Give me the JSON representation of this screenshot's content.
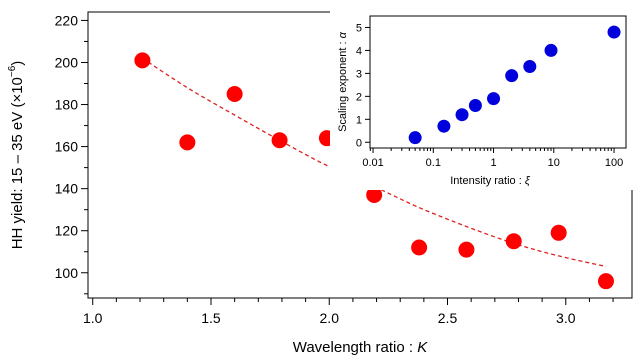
{
  "chart_data": [
    {
      "type": "scatter",
      "xlabel": "Wavelength ratio : ",
      "xlabel_symbol": "K",
      "ylabel": "HH yield: 15 – 35 eV (×10",
      "ylabel_exp": "−6",
      "ylabel_end": ")",
      "xlim": [
        0.98,
        3.28
      ],
      "ylim": [
        88,
        224
      ],
      "xticks": [
        1.0,
        1.5,
        2.0,
        2.5,
        3.0
      ],
      "xtick_labels": [
        "1.0",
        "1.5",
        "2.0",
        "2.5",
        "3.0"
      ],
      "yticks": [
        100,
        120,
        140,
        160,
        180,
        200,
        220
      ],
      "ytick_labels": [
        "100",
        "120",
        "140",
        "160",
        "180",
        "200",
        "220"
      ],
      "marker_color": "#ff0000",
      "fit_color": "#e02020",
      "points": [
        {
          "x": 1.21,
          "y": 201
        },
        {
          "x": 1.4,
          "y": 162
        },
        {
          "x": 1.6,
          "y": 185
        },
        {
          "x": 1.79,
          "y": 163
        },
        {
          "x": 1.99,
          "y": 164
        },
        {
          "x": 2.19,
          "y": 137
        },
        {
          "x": 2.38,
          "y": 112
        },
        {
          "x": 2.58,
          "y": 111
        },
        {
          "x": 2.78,
          "y": 115
        },
        {
          "x": 2.97,
          "y": 119
        },
        {
          "x": 3.17,
          "y": 96
        }
      ],
      "fit": [
        {
          "x": 1.21,
          "y": 202
        },
        {
          "x": 1.4,
          "y": 188
        },
        {
          "x": 1.6,
          "y": 175
        },
        {
          "x": 1.79,
          "y": 163
        },
        {
          "x": 1.99,
          "y": 151
        },
        {
          "x": 2.19,
          "y": 141
        },
        {
          "x": 2.38,
          "y": 131
        },
        {
          "x": 2.58,
          "y": 122
        },
        {
          "x": 2.78,
          "y": 114
        },
        {
          "x": 2.97,
          "y": 108
        },
        {
          "x": 3.17,
          "y": 103
        }
      ]
    },
    {
      "type": "scatter",
      "scale_x": "log",
      "xlabel": "Intensity ratio : ",
      "xlabel_symbol": "ξ",
      "ylabel": "Scaling exponent : ",
      "ylabel_symbol": "α",
      "xlim": [
        0.0089,
        158
      ],
      "ylim": [
        -0.25,
        5.5
      ],
      "xticks": [
        0.01,
        0.1,
        1,
        10,
        100
      ],
      "xtick_labels": [
        "0.01",
        "0.1",
        "1",
        "10",
        "100"
      ],
      "yticks": [
        0,
        1,
        2,
        3,
        4,
        5
      ],
      "ytick_labels": [
        "0",
        "1",
        "2",
        "3",
        "4",
        "5"
      ],
      "marker_color": "#0000dd",
      "points": [
        {
          "x": 0.05,
          "y": 0.2
        },
        {
          "x": 0.15,
          "y": 0.7
        },
        {
          "x": 0.3,
          "y": 1.2
        },
        {
          "x": 0.5,
          "y": 1.6
        },
        {
          "x": 1.0,
          "y": 1.9
        },
        {
          "x": 2.0,
          "y": 2.9
        },
        {
          "x": 4.0,
          "y": 3.3
        },
        {
          "x": 9.0,
          "y": 4.0
        },
        {
          "x": 100,
          "y": 4.8
        }
      ]
    }
  ]
}
